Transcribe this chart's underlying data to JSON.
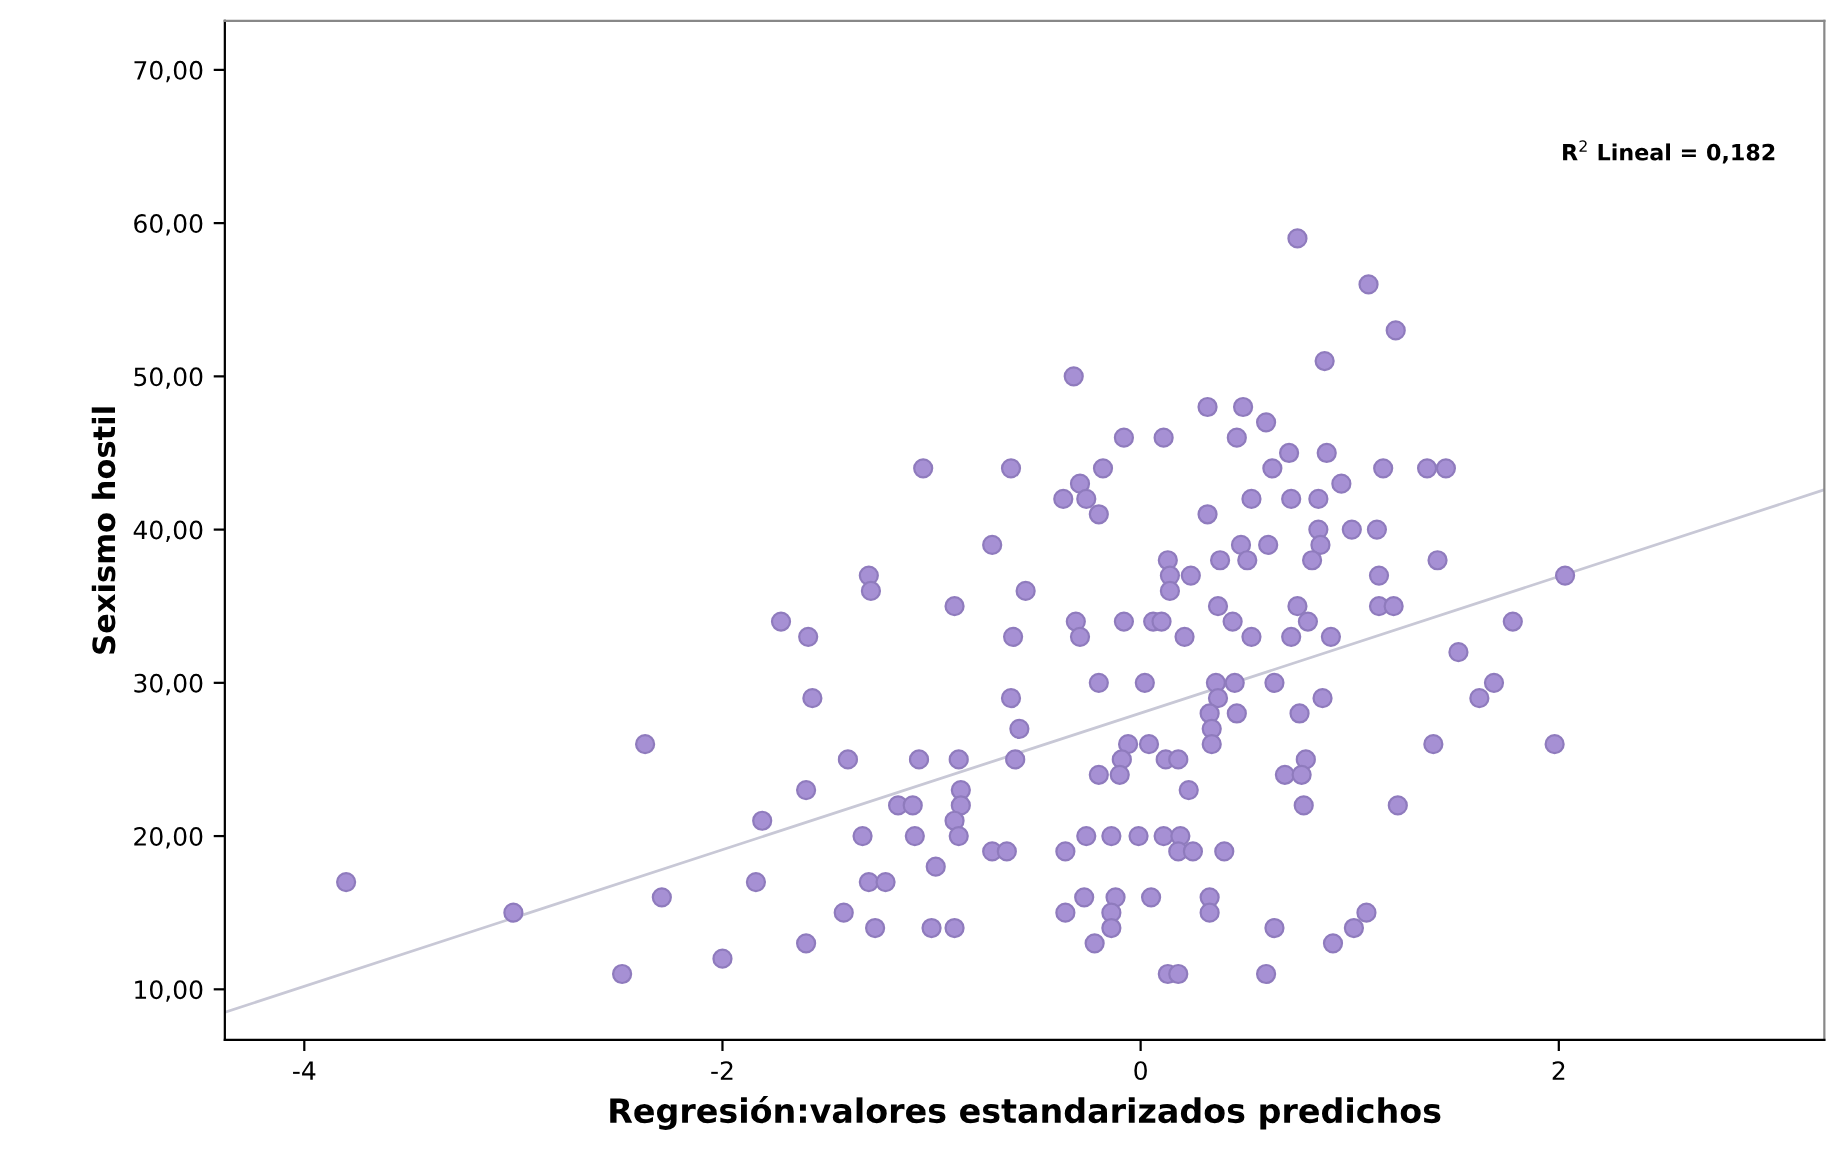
{
  "chart_data": {
    "type": "scatter",
    "xlabel": "Regresión:valores estandarizados predichos",
    "ylabel": "Sexismo hostil",
    "annotations": [
      "R$^{2}$ Lineal = 0,182"
    ],
    "xlim": [
      -4.38,
      3.27
    ],
    "ylim": [
      6.7,
      73.2
    ],
    "xticks": [
      -4,
      -2,
      0,
      2
    ],
    "yticks": [
      {
        "value": 10,
        "label": "10,00"
      },
      {
        "value": 20,
        "label": "20,00"
      },
      {
        "value": 30,
        "label": "30,00"
      },
      {
        "value": 40,
        "label": "40,00"
      },
      {
        "value": 50,
        "label": "50,00"
      },
      {
        "value": 60,
        "label": "60,00"
      },
      {
        "value": 70,
        "label": "70,00"
      }
    ],
    "grid": false,
    "legend": false,
    "series": [
      {
        "marker": "circle",
        "color": "#a690d4",
        "x": [
          -3.8,
          -3.0,
          -2.48,
          -2.37,
          -2.29,
          -2.0,
          -1.84,
          -1.81,
          -1.72,
          -1.6,
          -1.6,
          -1.59,
          -1.57,
          -1.42,
          -1.4,
          -1.33,
          -1.3,
          -1.29,
          -1.3,
          -1.22,
          -1.27,
          -1.16,
          -1.09,
          -1.08,
          -1.06,
          -0.98,
          -1.0,
          -0.89,
          -0.89,
          -0.87,
          -0.86,
          -0.86,
          -0.89,
          -0.87,
          -0.71,
          -0.71,
          -0.64,
          -0.62,
          -0.58,
          -0.6,
          -0.61,
          -0.55,
          -1.04,
          -0.62,
          0.75,
          1.09,
          1.22,
          0.88,
          -0.32,
          0.32,
          0.49,
          0.6,
          -0.08,
          0.11,
          0.46,
          -0.18,
          0.71,
          0.89,
          0.63,
          1.16,
          1.37,
          1.46,
          -0.29,
          -0.37,
          -0.26,
          -0.2,
          0.32,
          0.53,
          0.72,
          0.85,
          0.96,
          0.85,
          1.01,
          1.13,
          0.48,
          0.61,
          0.86,
          0.13,
          0.38,
          0.51,
          0.82,
          1.42,
          2.03,
          0.14,
          0.24,
          1.14,
          0.14,
          0.37,
          0.75,
          1.14,
          1.21,
          -0.31,
          -0.08,
          0.06,
          0.1,
          0.44,
          0.8,
          1.78,
          -0.29,
          0.21,
          0.53,
          0.72,
          0.91,
          1.52,
          -0.2,
          0.02,
          0.36,
          0.45,
          0.64,
          1.69,
          0.37,
          0.87,
          1.62,
          0.33,
          0.46,
          0.76,
          0.34,
          -0.06,
          0.04,
          0.34,
          1.4,
          1.98,
          -0.09,
          0.12,
          0.18,
          0.79,
          -0.2,
          -0.1,
          0.69,
          0.77,
          0.23,
          0.78,
          1.23,
          -0.36,
          -0.26,
          -0.14,
          -0.01,
          0.11,
          0.19,
          0.18,
          0.25,
          0.4,
          -0.27,
          -0.12,
          0.05,
          0.33,
          -0.36,
          -0.14,
          0.33,
          1.08,
          -0.14,
          0.64,
          1.02,
          -0.22,
          0.92,
          0.13,
          0.18,
          0.6
        ],
        "values": [
          17,
          15,
          11,
          26,
          16,
          12,
          17,
          21,
          34,
          13,
          23,
          33,
          29,
          15,
          25,
          20,
          37,
          36,
          17,
          17,
          14,
          22,
          22,
          20,
          25,
          18,
          14,
          14,
          35,
          25,
          23,
          22,
          21,
          20,
          39,
          19,
          19,
          29,
          27,
          25,
          33,
          36,
          44,
          44,
          59,
          56,
          53,
          51,
          50,
          48,
          48,
          47,
          46,
          46,
          46,
          44,
          45,
          45,
          44,
          44,
          44,
          44,
          43,
          42,
          42,
          41,
          41,
          42,
          42,
          42,
          43,
          40,
          40,
          40,
          39,
          39,
          39,
          38,
          38,
          38,
          38,
          38,
          37,
          37,
          37,
          37,
          36,
          35,
          35,
          35,
          35,
          34,
          34,
          34,
          34,
          34,
          34,
          34,
          33,
          33,
          33,
          33,
          33,
          32,
          30,
          30,
          30,
          30,
          30,
          30,
          29,
          29,
          29,
          28,
          28,
          28,
          27,
          26,
          26,
          26,
          26,
          26,
          25,
          25,
          25,
          25,
          24,
          24,
          24,
          24,
          23,
          22,
          22,
          19,
          20,
          20,
          20,
          20,
          20,
          19,
          19,
          19,
          16,
          16,
          16,
          16,
          15,
          15,
          15,
          15,
          14,
          14,
          14,
          13,
          13,
          11,
          11,
          11
        ]
      },
      {
        "type": "line",
        "color": "#c8c8d6",
        "x": [
          -4.38,
          3.27
        ],
        "values": [
          8.5,
          42.6
        ]
      }
    ]
  }
}
